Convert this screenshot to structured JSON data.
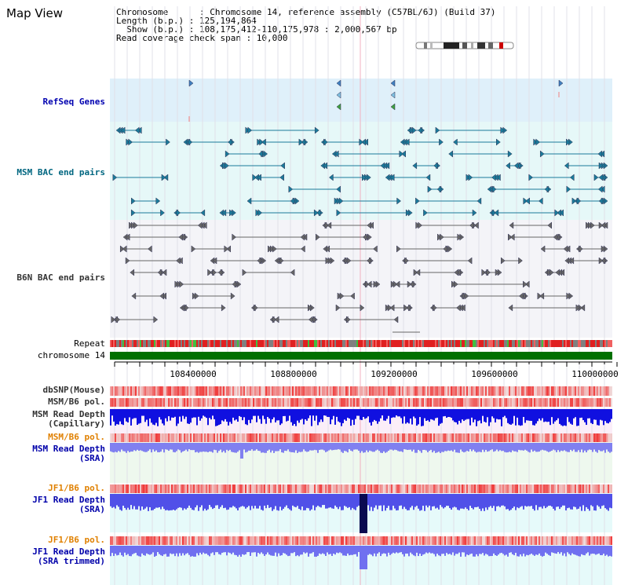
{
  "title": "Map View",
  "info": {
    "chromosome": "Chromosome      : Chromosome 14, reference assembly (C57BL/6J) (Build 37)",
    "length": "Length (b.p.) : 125,194,864",
    "show": "  Show (b.p.) : 108,175,412-110,175,978 : 2,000,567 bp",
    "coverage": "Read coverage check span : 10,000"
  },
  "tracks": {
    "refseq": "RefSeq Genes",
    "msm_bac": "MSM BAC end pairs",
    "b6n_bac": "B6N BAC end pairs",
    "repeat": "Repeat",
    "chromosome": "chromosome 14",
    "dbsnp": "dbSNP(Mouse)",
    "msm_b6_pol_1": "MSM/B6 pol.",
    "msm_read_depth_cap": "MSM Read Depth\n(Capillary)",
    "msm_b6_pol_2": "MSM/B6 pol.",
    "msm_read_depth_sra": "MSM Read Depth\n(SRA)",
    "jf1_b6_pol_1": "JF1/B6 pol.",
    "jf1_read_depth_sra": "JF1 Read Depth\n(SRA)",
    "jf1_b6_pol_2": "JF1/B6 pol.",
    "jf1_read_depth_trim": "JF1 Read Depth\n(SRA trimmed)"
  },
  "axis": {
    "ticks": [
      "108400000",
      "108800000",
      "109200000",
      "109600000",
      "110000000"
    ]
  },
  "colors": {
    "refseq_label": "#0000b0",
    "msm_label": "#006680",
    "b6n_label": "#333333",
    "pol_label": "#e08000",
    "depth_label": "#0000aa",
    "pol_label_black": "#000000",
    "chromosome_bar": "#007000",
    "bac_msm": "#1a7a9a",
    "bac_b6n": "#666666"
  }
}
